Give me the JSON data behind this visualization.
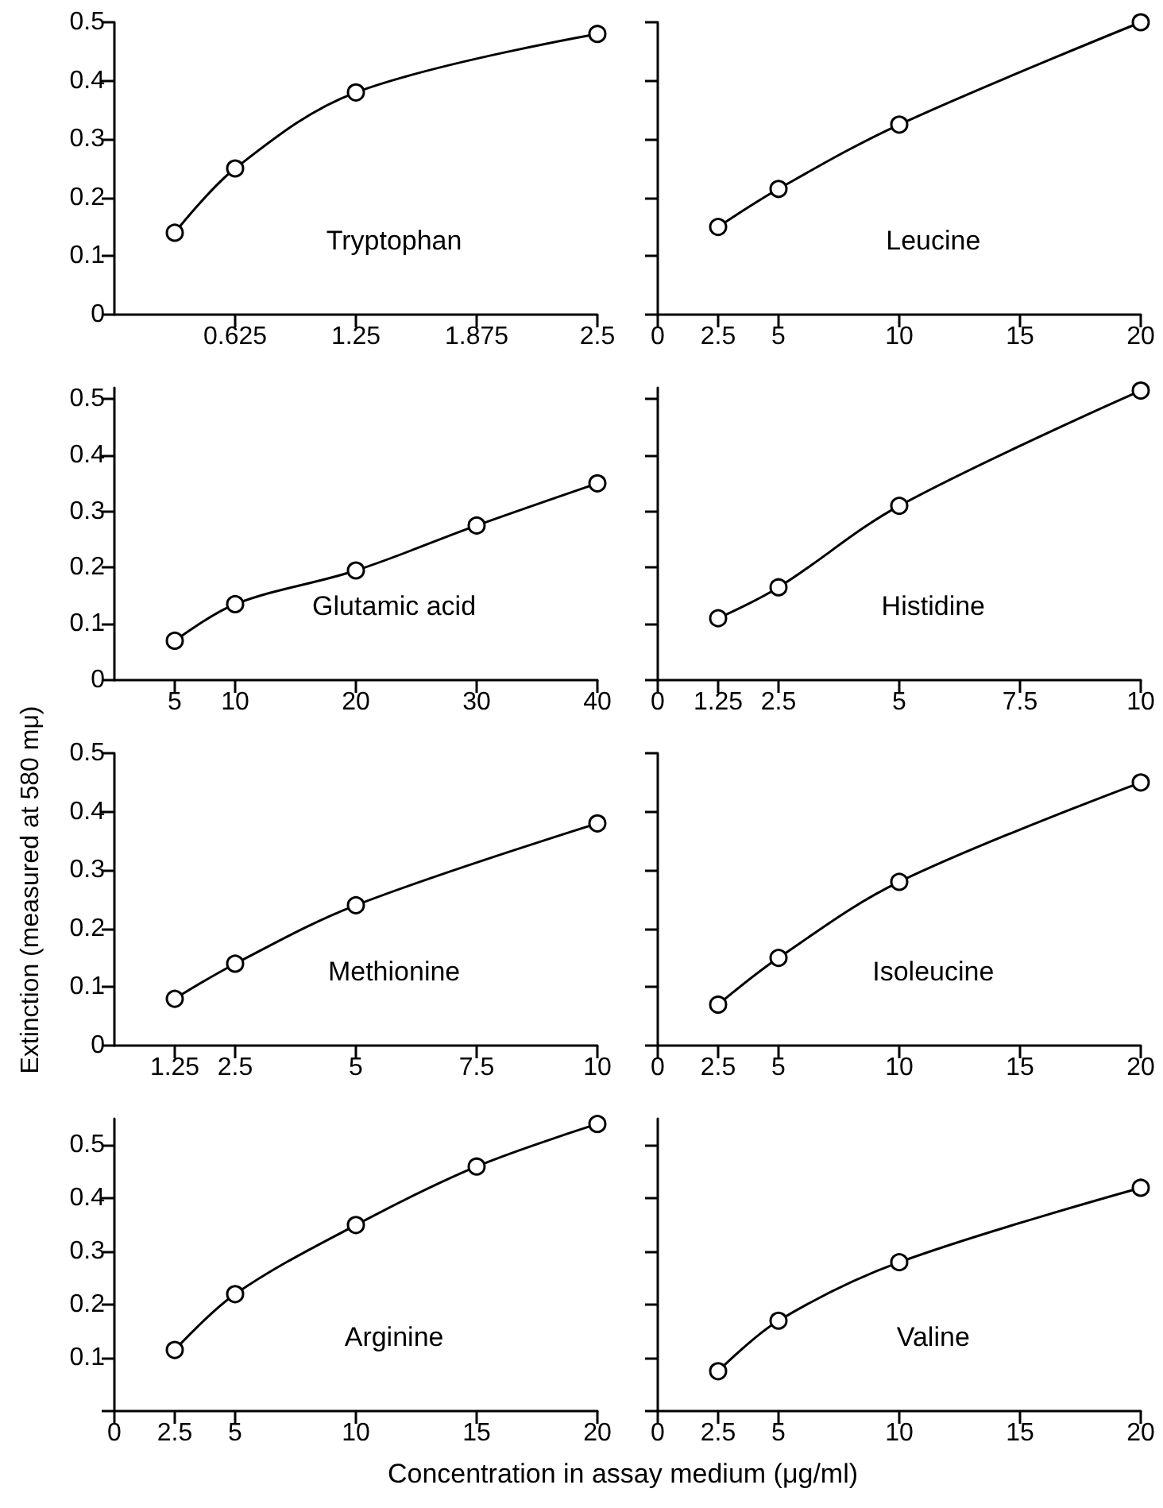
{
  "chart_data": [
    {
      "type": "line",
      "title": "Tryptophan",
      "x": [
        0.3125,
        0.625,
        1.25,
        2.5
      ],
      "series": [
        {
          "color": "#000000",
          "values": [
            0.14,
            0.25,
            0.38,
            0.48
          ]
        }
      ],
      "xlim": [
        0,
        2.5
      ],
      "xticks": [
        0.625,
        1.25,
        1.875,
        2.5
      ],
      "ylim": [
        0,
        0.5
      ],
      "yticks": [
        0,
        0.1,
        0.2,
        0.3,
        0.4,
        0.5
      ],
      "marker": "circle",
      "line_style": "solid",
      "grid": false
    },
    {
      "type": "line",
      "title": "Leucine",
      "x": [
        2.5,
        5,
        10,
        20
      ],
      "series": [
        {
          "color": "#000000",
          "values": [
            0.15,
            0.215,
            0.325,
            0.5
          ]
        }
      ],
      "xlim": [
        0,
        20
      ],
      "xticks": [
        0,
        2.5,
        5,
        10,
        15,
        20
      ],
      "ylim": [
        0,
        0.5
      ],
      "yticks": [
        {
          "value": 0,
          "label": null
        },
        {
          "value": 0.1,
          "label": null
        },
        {
          "value": 0.2,
          "label": null
        },
        {
          "value": 0.3,
          "label": null
        },
        {
          "value": 0.4,
          "label": null
        },
        {
          "value": 0.5,
          "label": null
        }
      ],
      "tick_labels": "x",
      "marker": "circle",
      "line_style": "solid",
      "grid": false
    },
    {
      "type": "line",
      "title": "Glutamic acid",
      "x": [
        5,
        10,
        20,
        30,
        40
      ],
      "series": [
        {
          "color": "#000000",
          "values": [
            0.07,
            0.135,
            0.195,
            0.275,
            0.35
          ]
        }
      ],
      "xlim": [
        0,
        40
      ],
      "xticks": [
        5,
        10,
        20,
        30,
        40
      ],
      "ylim": [
        0,
        0.52
      ],
      "yticks": [
        0,
        0.1,
        0.2,
        0.3,
        0.4,
        0.5
      ],
      "marker": "circle",
      "line_style": "solid",
      "grid": false
    },
    {
      "type": "line",
      "title": "Histidine",
      "x": [
        1.25,
        2.5,
        5,
        10
      ],
      "series": [
        {
          "color": "#000000",
          "values": [
            0.11,
            0.165,
            0.31,
            0.515
          ]
        }
      ],
      "xlim": [
        0,
        10
      ],
      "xticks": [
        0,
        1.25,
        2.5,
        5,
        7.5,
        10
      ],
      "ylim": [
        0,
        0.52
      ],
      "yticks": [
        {
          "value": 0,
          "label": null
        },
        {
          "value": 0.1,
          "label": null
        },
        {
          "value": 0.2,
          "label": null
        },
        {
          "value": 0.3,
          "label": null
        },
        {
          "value": 0.4,
          "label": null
        },
        {
          "value": 0.5,
          "label": null
        }
      ],
      "tick_labels": "x",
      "marker": "circle",
      "line_style": "solid",
      "grid": false
    },
    {
      "type": "line",
      "title": "Methionine",
      "ylabel": "Extinction (measured at 580 mμ)",
      "x": [
        1.25,
        2.5,
        5,
        10
      ],
      "series": [
        {
          "color": "#000000",
          "values": [
            0.08,
            0.14,
            0.24,
            0.38
          ]
        }
      ],
      "xlim": [
        0,
        10
      ],
      "xticks": [
        1.25,
        2.5,
        5,
        7.5,
        10
      ],
      "ylim": [
        0,
        0.5
      ],
      "yticks": [
        0,
        0.1,
        0.2,
        0.3,
        0.4,
        0.5
      ],
      "marker": "circle",
      "line_style": "solid",
      "grid": false
    },
    {
      "type": "line",
      "title": "Isoleucine",
      "x": [
        2.5,
        5,
        10,
        20
      ],
      "series": [
        {
          "color": "#000000",
          "values": [
            0.07,
            0.15,
            0.28,
            0.45
          ]
        }
      ],
      "xlim": [
        0,
        20
      ],
      "xticks": [
        0,
        2.5,
        5,
        10,
        15,
        20
      ],
      "ylim": [
        0,
        0.5
      ],
      "yticks": [
        {
          "value": 0,
          "label": null
        },
        {
          "value": 0.1,
          "label": null
        },
        {
          "value": 0.2,
          "label": null
        },
        {
          "value": 0.3,
          "label": null
        },
        {
          "value": 0.4,
          "label": null
        },
        {
          "value": 0.5,
          "label": null
        }
      ],
      "tick_labels": "x",
      "marker": "circle",
      "line_style": "solid",
      "grid": false
    },
    {
      "type": "line",
      "title": "Arginine",
      "xlabel": "Concentration in assay medium (μg/ml)",
      "x": [
        2.5,
        5,
        10,
        15,
        20
      ],
      "series": [
        {
          "color": "#000000",
          "values": [
            0.115,
            0.22,
            0.35,
            0.46,
            0.54
          ]
        }
      ],
      "xlim": [
        0,
        20
      ],
      "xticks": [
        0,
        2.5,
        5,
        10,
        15,
        20
      ],
      "ylim": [
        0,
        0.55
      ],
      "yticks": [
        {
          "value": 0,
          "label": null
        },
        0.1,
        0.2,
        0.3,
        0.4,
        0.5
      ],
      "marker": "circle",
      "line_style": "solid",
      "grid": false
    },
    {
      "type": "line",
      "title": "Valine",
      "x": [
        2.5,
        5,
        10,
        20
      ],
      "series": [
        {
          "color": "#000000",
          "values": [
            0.075,
            0.17,
            0.28,
            0.42
          ]
        }
      ],
      "xlim": [
        0,
        20
      ],
      "xticks": [
        0,
        2.5,
        5,
        10,
        15,
        20
      ],
      "ylim": [
        0,
        0.55
      ],
      "yticks": [
        {
          "value": 0,
          "label": null
        },
        {
          "value": 0.1,
          "label": null
        },
        {
          "value": 0.2,
          "label": null
        },
        {
          "value": 0.3,
          "label": null
        },
        {
          "value": 0.4,
          "label": null
        },
        {
          "value": 0.5,
          "label": null
        }
      ],
      "tick_labels": "x",
      "marker": "circle",
      "line_style": "solid",
      "grid": false
    }
  ]
}
